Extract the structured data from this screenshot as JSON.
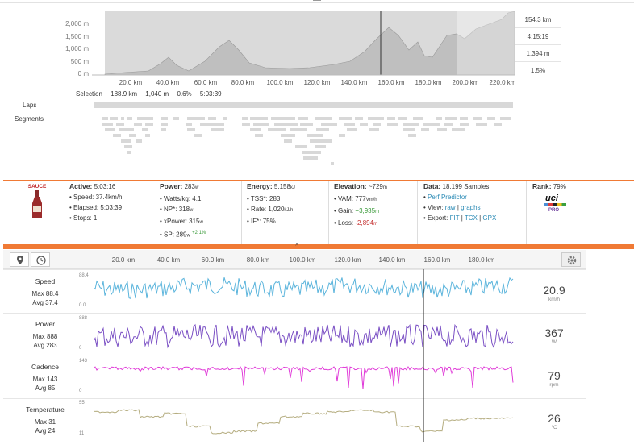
{
  "top": {
    "elevation_axis": [
      "2,000 m",
      "1,500 m",
      "1,000 m",
      "500 m",
      "0 m"
    ],
    "distance_axis": [
      "20.0 km",
      "40.0 km",
      "60.0 km",
      "80.0 km",
      "100.0 km",
      "120.0 km",
      "140.0 km",
      "160.0 km",
      "180.0 km",
      "200.0 km",
      "220.0 km"
    ],
    "stats": [
      "154.3 km",
      "4:15:19",
      "1,394 m",
      "1.5%"
    ],
    "selection": {
      "label": "Selection",
      "distance": "188.9 km",
      "gain": "1,040 m",
      "grade": "0.6%",
      "time": "5:03:39"
    },
    "laps_label": "Laps",
    "segments_label": "Segments"
  },
  "summary": {
    "logo": "SAUCE",
    "active": {
      "title": "Active:",
      "value": "5:03:16",
      "speed": "• Speed: 37.4km/h",
      "elapsed": "• Elapsed: 5:03:39",
      "stops": "• Stops: 1"
    },
    "power": {
      "title": "Power:",
      "value": "283",
      "unit": "w",
      "wkg": "• Watts/kg: 4.1",
      "np": "• NP*: 318",
      "np_unit": "w",
      "xpower": "• xPower: 315",
      "xpower_unit": "w",
      "sp": "• SP: 289",
      "sp_unit": "w",
      "sp_delta": "+2.1%"
    },
    "energy": {
      "title": "Energy:",
      "value": "5,158",
      "unit": "kJ",
      "tss": "• TSS*: 283",
      "rate": "• Rate: 1,020",
      "rate_unit": "kJ/h",
      "if": "• IF*: 75%"
    },
    "elevation": {
      "title": "Elevation:",
      "value": "~729",
      "unit": "m",
      "vam": "• VAM: 777",
      "vam_unit": "Vm/h",
      "gain_label": "• Gain:",
      "gain": "+3,935",
      "gain_unit": "m",
      "loss_label": "• Loss:",
      "loss": "-2,894",
      "loss_unit": "m"
    },
    "data": {
      "title": "Data:",
      "value": "18,199 Samples",
      "perf_bullet": "•",
      "perf": "Perf Predictor",
      "view_label": "• View:",
      "view_raw": "raw",
      "view_sep": "|",
      "view_graphs": "graphs",
      "export_label": "• Export:",
      "export_fit": "FIT",
      "export_sep1": "|",
      "export_tcx": "TCX",
      "export_sep2": "|",
      "export_gpx": "GPX"
    },
    "rank": {
      "title": "Rank:",
      "value": "79%",
      "badge": "uci",
      "badge_sub": "PRO"
    }
  },
  "charts": {
    "collapse_glyph": "^",
    "distance_axis": [
      "20.0 km",
      "40.0 km",
      "60.0 km",
      "80.0 km",
      "100.0 km",
      "120.0 km",
      "140.0 km",
      "160.0 km",
      "180.0 km"
    ],
    "rows": [
      {
        "name": "Speed",
        "max": "Max 88.4",
        "avg": "Avg 37.4",
        "ytop": "88.4",
        "ybot": "0.0",
        "value": "20.9",
        "unit": "km/h",
        "color": "#5ab4dc"
      },
      {
        "name": "Power",
        "max": "Max 888",
        "avg": "Avg 283",
        "ytop": "888",
        "ybot": "0",
        "value": "367",
        "unit": "W",
        "color": "#7a4fc4"
      },
      {
        "name": "Cadence",
        "max": "Max 143",
        "avg": "Avg 85",
        "ytop": "143",
        "ybot": "0",
        "value": "79",
        "unit": "rpm",
        "color": "#e03ad8"
      },
      {
        "name": "Temperature",
        "max": "Max 31",
        "avg": "Avg 24",
        "ytop": "55",
        "ybot": "11",
        "value": "26",
        "unit": "°C",
        "color": "#b5ad80"
      }
    ]
  }
}
